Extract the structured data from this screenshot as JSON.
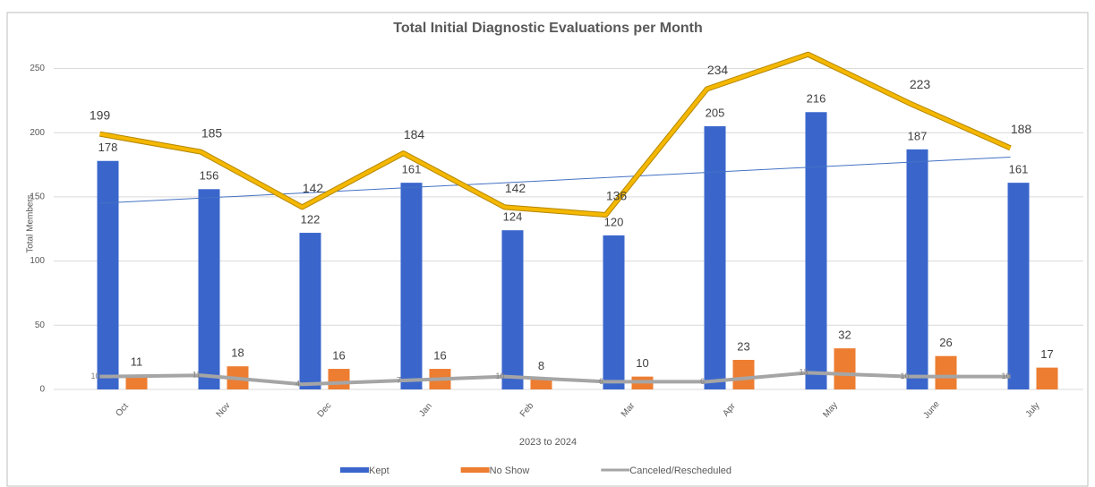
{
  "chart_data": {
    "type": "bar",
    "title": "Total Initial Diagnostic Evaluations per Month",
    "x_label": "2023 to 2024",
    "y_label": "Total Members",
    "categories": [
      "Oct",
      "Nov",
      "Dec",
      "Jan",
      "Feb",
      "Mar",
      "Apr",
      "May",
      "June",
      "July"
    ],
    "series": [
      {
        "name": "Kept",
        "color": "#3a66cc",
        "kind": "bar",
        "values": [
          178,
          156,
          122,
          161,
          124,
          120,
          205,
          216,
          187,
          161
        ]
      },
      {
        "name": "No Show",
        "color": "#ed7d31",
        "kind": "bar",
        "values": [
          11,
          18,
          16,
          16,
          8,
          10,
          23,
          32,
          26,
          17
        ]
      },
      {
        "name": "Canceled/Rescheduled",
        "color": "#a5a5a5",
        "kind": "line",
        "values": [
          10,
          11,
          4,
          7,
          10,
          6,
          6,
          13,
          10,
          10
        ]
      }
    ],
    "total_line": {
      "color": "#f5b800",
      "values": [
        199,
        185,
        142,
        184,
        142,
        136,
        234,
        261,
        223,
        188
      ]
    },
    "trendline": {
      "color": "#4472c4",
      "start": 145,
      "end": 181
    },
    "ylim": [
      0,
      265
    ],
    "yticks": [
      0,
      50,
      100,
      150,
      200,
      250
    ],
    "grid": true,
    "legend": "bottom"
  }
}
